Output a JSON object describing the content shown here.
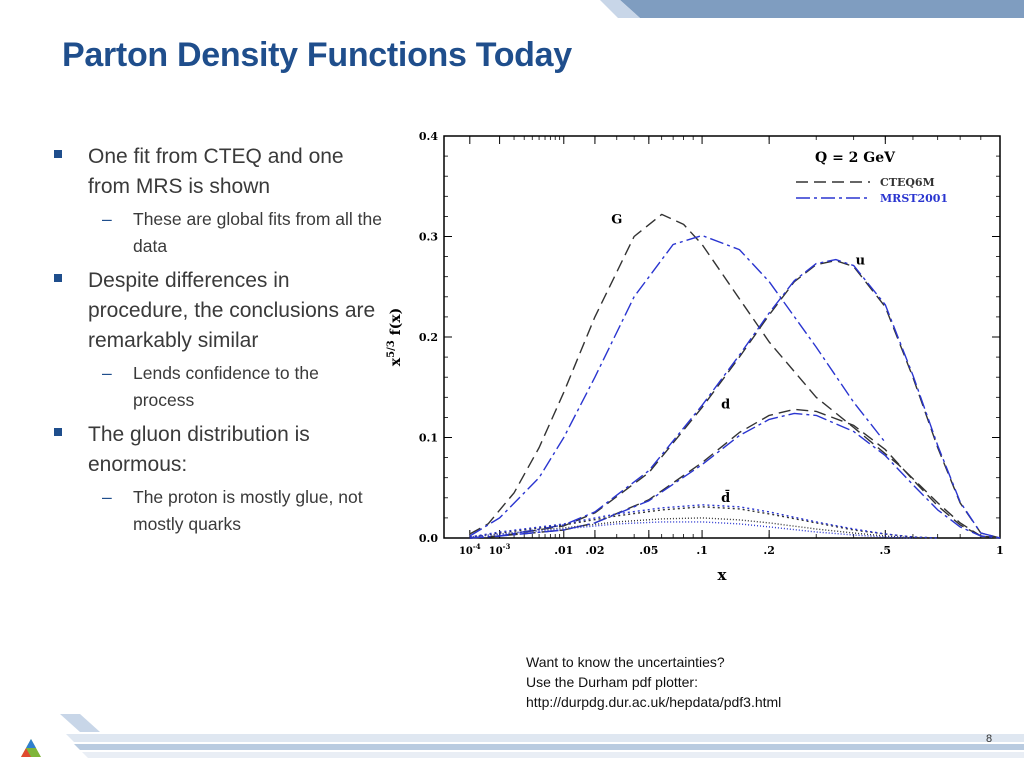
{
  "slide": {
    "title": "Parton Density Functions Today",
    "page_number": "8",
    "accent": "#1f4e8c",
    "bullets": [
      {
        "text": "One fit from CTEQ and one from MRS is shown",
        "sub": [
          "These are global fits from all the data"
        ]
      },
      {
        "text": "Despite differences in procedure, the conclusions are remarkably similar",
        "sub": [
          "Lends confidence to the process"
        ]
      },
      {
        "text": "The gluon distribution is enormous:",
        "sub": [
          "The proton is mostly glue, not mostly quarks"
        ]
      }
    ],
    "note": {
      "line1": "Want to know the uncertainties?",
      "line2": "Use the Durham pdf plotter:",
      "line3": "http://durpdg.dur.ac.uk/hepdata/pdf3.html"
    }
  },
  "chart_data": {
    "type": "line",
    "xlabel": "x",
    "ylabel": "x^{5/3} f(x)",
    "x_scale": "x^(1/3)",
    "xlim": [
      0,
      1
    ],
    "ylim": [
      0,
      0.4
    ],
    "x_ticks": [
      "10^-4",
      "10^-3",
      ".01",
      ".02",
      ".05",
      ".1",
      ".2",
      ".5",
      "1"
    ],
    "x_tick_values": [
      0.0001,
      0.001,
      0.01,
      0.02,
      0.05,
      0.1,
      0.2,
      0.5,
      1
    ],
    "y_ticks": [
      "0.0",
      "0.1",
      "0.2",
      "0.3",
      "0.4"
    ],
    "y_tick_values": [
      0,
      0.1,
      0.2,
      0.3,
      0.4
    ],
    "annotation": "Q = 2 GeV",
    "legend": [
      {
        "label": "CTEQ6M",
        "color": "#333333",
        "dash": "long-dash"
      },
      {
        "label": "MRST2001",
        "color": "#2a35d0",
        "dash": "dash-dot"
      }
    ],
    "curve_labels": [
      {
        "text": "G",
        "x": 0.03,
        "y": 0.313
      },
      {
        "text": "u",
        "x": 0.42,
        "y": 0.272
      },
      {
        "text": "d",
        "x": 0.13,
        "y": 0.129
      },
      {
        "text": "d̄",
        "x": 0.13,
        "y": 0.036
      }
    ],
    "series": [
      {
        "group": "G",
        "pdf": "CTEQ6M",
        "color": "#333333",
        "dash": "12,6",
        "x": [
          0.0001,
          0.0005,
          0.002,
          0.005,
          0.01,
          0.02,
          0.04,
          0.06,
          0.08,
          0.1,
          0.15,
          0.2,
          0.3,
          0.4,
          0.55,
          0.7,
          0.8,
          0.9,
          1.0
        ],
        "y": [
          0.004,
          0.014,
          0.045,
          0.09,
          0.145,
          0.22,
          0.3,
          0.322,
          0.312,
          0.292,
          0.238,
          0.195,
          0.14,
          0.11,
          0.072,
          0.035,
          0.015,
          0.002,
          0
        ]
      },
      {
        "group": "G",
        "pdf": "MRST2001",
        "color": "#2a35d0",
        "dash": "14,4,3,4",
        "x": [
          0.0001,
          0.001,
          0.005,
          0.01,
          0.02,
          0.04,
          0.07,
          0.1,
          0.15,
          0.2,
          0.3,
          0.4,
          0.5
        ],
        "y": [
          0.002,
          0.02,
          0.06,
          0.1,
          0.16,
          0.24,
          0.292,
          0.301,
          0.287,
          0.255,
          0.19,
          0.135,
          0.095
        ]
      },
      {
        "group": "u",
        "pdf": "CTEQ6M",
        "color": "#333333",
        "dash": "12,6",
        "x": [
          0.0001,
          0.001,
          0.01,
          0.02,
          0.05,
          0.1,
          0.15,
          0.2,
          0.25,
          0.3,
          0.35,
          0.4,
          0.5,
          0.6,
          0.7,
          0.8,
          0.9,
          1.0
        ],
        "y": [
          0.0,
          0.002,
          0.012,
          0.025,
          0.065,
          0.13,
          0.18,
          0.222,
          0.255,
          0.272,
          0.276,
          0.27,
          0.23,
          0.16,
          0.09,
          0.035,
          0.005,
          0
        ]
      },
      {
        "group": "u",
        "pdf": "MRST2001",
        "color": "#2a35d0",
        "dash": "14,4,3,4",
        "x": [
          0.0001,
          0.001,
          0.01,
          0.02,
          0.05,
          0.1,
          0.15,
          0.2,
          0.25,
          0.3,
          0.35,
          0.4,
          0.5,
          0.6,
          0.7,
          0.8,
          0.9,
          1.0
        ],
        "y": [
          0.0,
          0.002,
          0.013,
          0.026,
          0.067,
          0.132,
          0.182,
          0.224,
          0.256,
          0.273,
          0.277,
          0.271,
          0.232,
          0.162,
          0.092,
          0.036,
          0.005,
          0
        ]
      },
      {
        "group": "d",
        "pdf": "CTEQ6M",
        "color": "#333333",
        "dash": "12,6",
        "x": [
          0.0001,
          0.001,
          0.01,
          0.02,
          0.05,
          0.1,
          0.15,
          0.2,
          0.25,
          0.3,
          0.4,
          0.5,
          0.6,
          0.7,
          0.8,
          0.9,
          1.0
        ],
        "y": [
          0.0,
          0.002,
          0.008,
          0.015,
          0.038,
          0.075,
          0.105,
          0.122,
          0.128,
          0.126,
          0.112,
          0.088,
          0.058,
          0.032,
          0.013,
          0.002,
          0
        ]
      },
      {
        "group": "d",
        "pdf": "MRST2001",
        "color": "#2a35d0",
        "dash": "14,4,3,4",
        "x": [
          0.0001,
          0.001,
          0.01,
          0.02,
          0.05,
          0.1,
          0.15,
          0.2,
          0.25,
          0.3,
          0.4,
          0.5,
          0.6,
          0.7,
          0.8,
          0.9,
          1.0
        ],
        "y": [
          0.0,
          0.002,
          0.008,
          0.015,
          0.037,
          0.073,
          0.102,
          0.118,
          0.124,
          0.122,
          0.106,
          0.082,
          0.053,
          0.028,
          0.011,
          0.002,
          0
        ]
      },
      {
        "group": "dbar",
        "pdf": "CTEQ6M",
        "color": "#333333",
        "dash": "2,3",
        "x": [
          0.0001,
          0.001,
          0.01,
          0.03,
          0.06,
          0.1,
          0.15,
          0.2,
          0.3,
          0.4,
          0.5,
          0.6,
          0.7
        ],
        "y": [
          0.001,
          0.005,
          0.013,
          0.022,
          0.028,
          0.031,
          0.029,
          0.024,
          0.015,
          0.008,
          0.004,
          0.001,
          0
        ]
      },
      {
        "group": "dbar",
        "pdf": "MRST2001",
        "color": "#2a35d0",
        "dash": "2,3",
        "x": [
          0.0001,
          0.001,
          0.01,
          0.03,
          0.06,
          0.1,
          0.15,
          0.2,
          0.3,
          0.4,
          0.5,
          0.6,
          0.7
        ],
        "y": [
          0.001,
          0.006,
          0.014,
          0.024,
          0.03,
          0.033,
          0.031,
          0.026,
          0.016,
          0.009,
          0.004,
          0.001,
          0
        ]
      },
      {
        "group": "sea",
        "pdf": "CTEQ6M",
        "color": "#333333",
        "dash": "1,2",
        "x": [
          0.0001,
          0.001,
          0.01,
          0.03,
          0.06,
          0.1,
          0.15,
          0.2,
          0.3,
          0.4,
          0.5,
          0.6
        ],
        "y": [
          0.001,
          0.004,
          0.01,
          0.016,
          0.019,
          0.02,
          0.018,
          0.015,
          0.009,
          0.005,
          0.002,
          0
        ]
      },
      {
        "group": "sea",
        "pdf": "MRST2001",
        "color": "#2a35d0",
        "dash": "1,2",
        "x": [
          0.0001,
          0.001,
          0.01,
          0.03,
          0.06,
          0.1,
          0.15,
          0.2,
          0.3,
          0.4,
          0.5,
          0.6
        ],
        "y": [
          0.001,
          0.004,
          0.009,
          0.014,
          0.016,
          0.016,
          0.014,
          0.011,
          0.006,
          0.003,
          0.001,
          0
        ]
      }
    ]
  }
}
